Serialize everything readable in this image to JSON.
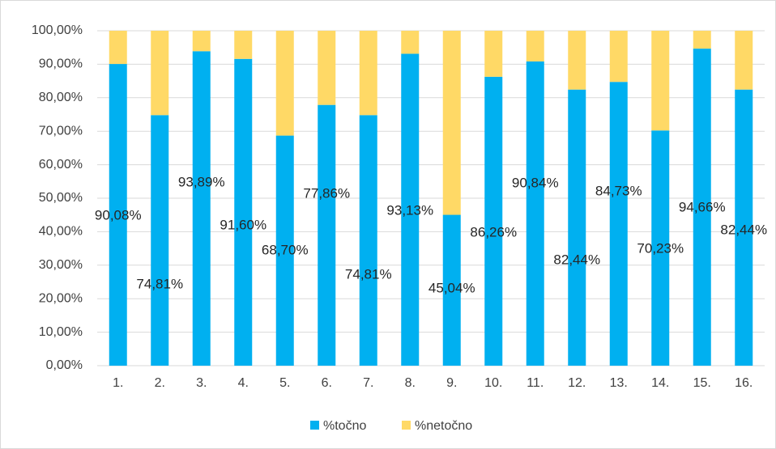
{
  "chart_data": {
    "type": "stacked_bar",
    "categories": [
      "1.",
      "2.",
      "3.",
      "4.",
      "5.",
      "6.",
      "7.",
      "8.",
      "9.",
      "10.",
      "11.",
      "12.",
      "13.",
      "14.",
      "15.",
      "16."
    ],
    "series": [
      {
        "name": "%točno",
        "color": "#00b0f0",
        "values": [
          90.08,
          74.81,
          93.89,
          91.6,
          68.7,
          77.86,
          74.81,
          93.13,
          45.04,
          86.26,
          90.84,
          82.44,
          84.73,
          70.23,
          94.66,
          82.44
        ],
        "value_labels": [
          "90,08%",
          "74,81%",
          "93,89%",
          "91,60%",
          "68,70%",
          "77,86%",
          "74,81%",
          "93,13%",
          "45,04%",
          "86,26%",
          "90,84%",
          "82,44%",
          "84,73%",
          "70,23%",
          "94,66%",
          "82,44%"
        ]
      },
      {
        "name": "%netočno",
        "color": "#ffd966",
        "values": [
          9.92,
          25.19,
          6.11,
          8.4,
          31.3,
          22.14,
          25.19,
          6.87,
          54.96,
          13.74,
          9.16,
          17.56,
          15.27,
          29.77,
          5.34,
          17.56
        ]
      }
    ],
    "ylim": [
      0,
      100
    ],
    "yticks": [
      {
        "value": 0,
        "label": "0,00%"
      },
      {
        "value": 10,
        "label": "10,00%"
      },
      {
        "value": 20,
        "label": "20,00%"
      },
      {
        "value": 30,
        "label": "30,00%"
      },
      {
        "value": 40,
        "label": "40,00%"
      },
      {
        "value": 50,
        "label": "50,00%"
      },
      {
        "value": 60,
        "label": "60,00%"
      },
      {
        "value": 70,
        "label": "70,00%"
      },
      {
        "value": 80,
        "label": "80,00%"
      },
      {
        "value": 90,
        "label": "90,00%"
      },
      {
        "value": 100,
        "label": "100,00%"
      }
    ],
    "grid": true,
    "legend": "bottom"
  }
}
